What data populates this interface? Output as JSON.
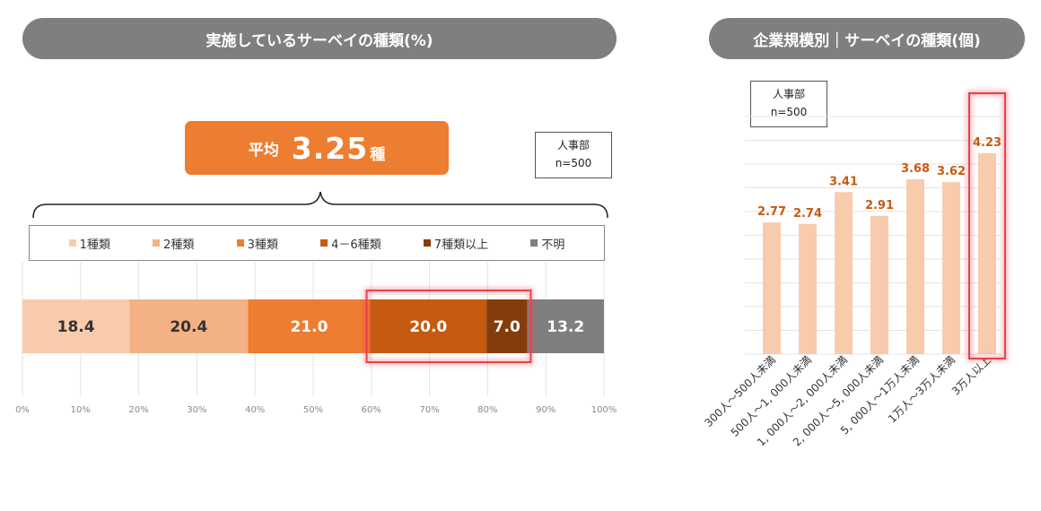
{
  "left_chart": {
    "title": "実施しているサーベイの種類(%)",
    "average": {
      "label": "平均",
      "value": "3.25",
      "unit": "種"
    },
    "sample_note": {
      "line1": "人事部",
      "line2": "n=500"
    }
  },
  "right_chart": {
    "title": "企業規模別｜サーベイの種類(個)",
    "sample_note": {
      "line1": "人事部",
      "line2": "n=500"
    }
  },
  "chart_data": [
    {
      "type": "bar",
      "orientation": "horizontal-stacked",
      "title": "実施しているサーベイの種類(%)",
      "series": [
        {
          "name": "1種類",
          "value": 18.4,
          "label": "18.4",
          "color": "#f8cbad"
        },
        {
          "name": "2種類",
          "value": 20.4,
          "label": "20.4",
          "color": "#f4b183"
        },
        {
          "name": "3種類",
          "value": 21.0,
          "label": "21.0",
          "color": "#ed7d31"
        },
        {
          "name": "4－6種類",
          "value": 20.0,
          "label": "20.0",
          "color": "#c55a11"
        },
        {
          "name": "7種類以上",
          "value": 7.0,
          "label": "7.0",
          "color": "#843c0c"
        },
        {
          "name": "不明",
          "value": 13.2,
          "label": "13.2",
          "color": "#7f7f7f"
        }
      ],
      "xlim": [
        0,
        100
      ],
      "x_ticks": [
        "0%",
        "10%",
        "20%",
        "30%",
        "40%",
        "50%",
        "60%",
        "70%",
        "80%",
        "90%",
        "100%"
      ],
      "grid": true,
      "legend": "top",
      "highlight": [
        "4－6種類",
        "7種類以上"
      ],
      "highlight_color": "#e8434b"
    },
    {
      "type": "bar",
      "title": "企業規模別｜サーベイの種類(個)",
      "categories": [
        "300人～500人未満",
        "500人～1, 000人未満",
        "1, 000人～2, 000人未満",
        "2, 000人～5, 000人未満",
        "5, 000人～1万人未満",
        "1万人～3万人未満",
        "3万人以上"
      ],
      "values": [
        2.77,
        2.74,
        3.41,
        2.91,
        3.68,
        3.62,
        4.23
      ],
      "labels": [
        "2.77",
        "2.74",
        "3.41",
        "2.91",
        "3.68",
        "3.62",
        "4.23"
      ],
      "ylim": [
        0,
        5
      ],
      "grid": true,
      "bar_color": "#f8cbad",
      "label_color": "#c55a11",
      "highlight": [
        "3万人以上"
      ],
      "highlight_color": "#e8434b"
    }
  ]
}
